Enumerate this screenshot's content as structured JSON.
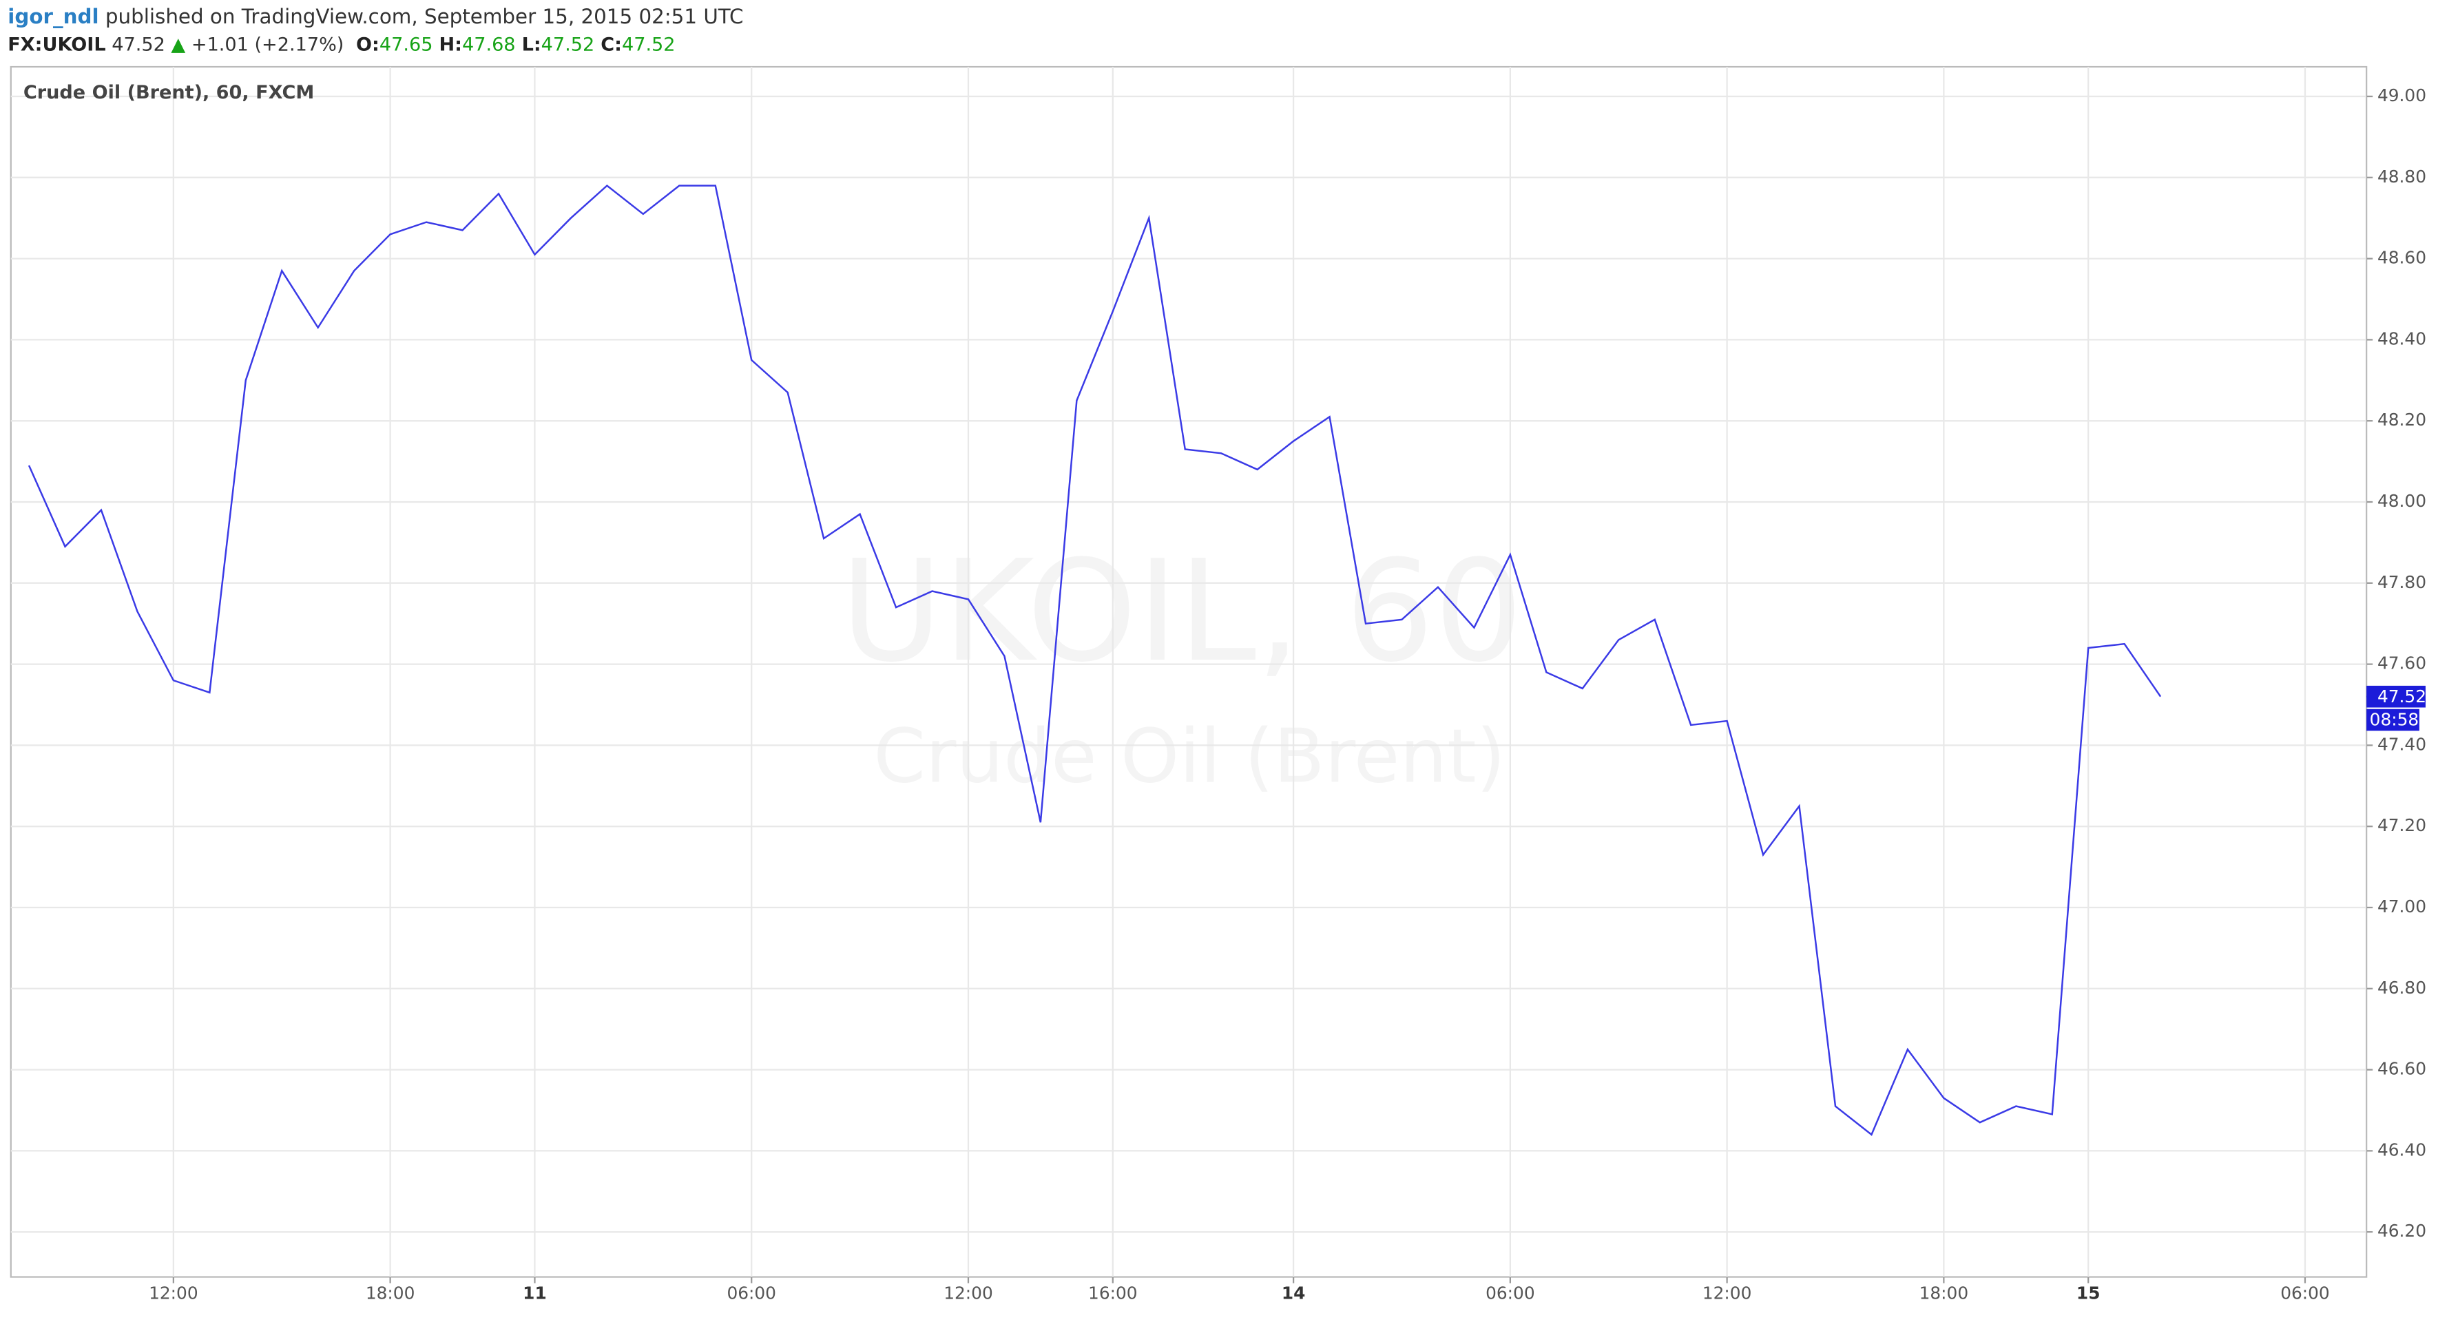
{
  "header": {
    "author": "igor_ndl",
    "published": "published on TradingView.com, September 15, 2015 02:51 UTC",
    "symbol": "FX:UKOIL",
    "price": "47.52",
    "arrow": "▲",
    "change": "+1.01 (+2.17%)",
    "ohlc": [
      {
        "key": "O:",
        "value": "47.65"
      },
      {
        "key": "H:",
        "value": "47.68"
      },
      {
        "key": "L:",
        "value": "47.52"
      },
      {
        "key": "C:",
        "value": "47.52"
      }
    ]
  },
  "chart_data": {
    "type": "line",
    "title": "Crude Oil (Brent), 60, FXCM",
    "watermark": [
      "UKOIL, 60",
      "Crude Oil (Brent)"
    ],
    "x": [
      0,
      1,
      2,
      3,
      4,
      5,
      6,
      7,
      8,
      9,
      10,
      11,
      12,
      13,
      14,
      15,
      16,
      17,
      18,
      19,
      20,
      21,
      22,
      23,
      24,
      25,
      26,
      27,
      28,
      29,
      30,
      31,
      32,
      33,
      34,
      35,
      36,
      37,
      38,
      39,
      40,
      41,
      42,
      43,
      44,
      45,
      46,
      47,
      48,
      49,
      50,
      51,
      52,
      53,
      54,
      55,
      56,
      57,
      58,
      59
    ],
    "series": [
      {
        "name": "UKOIL",
        "color": "#3a3ae6",
        "values": [
          48.09,
          47.89,
          47.98,
          47.73,
          47.56,
          47.53,
          48.3,
          48.57,
          48.43,
          48.57,
          48.66,
          48.69,
          48.67,
          48.76,
          48.61,
          48.7,
          48.78,
          48.71,
          48.78,
          48.78,
          48.35,
          48.27,
          47.91,
          47.97,
          47.74,
          47.78,
          47.76,
          47.62,
          47.21,
          48.25,
          48.47,
          48.7,
          48.13,
          48.12,
          48.08,
          48.15,
          48.21,
          47.7,
          47.71,
          47.79,
          47.69,
          47.87,
          47.58,
          47.54,
          47.66,
          47.71,
          47.45,
          47.46,
          47.13,
          47.25,
          46.51,
          46.44,
          46.65,
          46.53,
          46.47,
          46.51,
          46.49,
          47.64,
          47.65,
          47.52
        ]
      }
    ],
    "xlim": [
      -0.5,
      64.7
    ],
    "xticks": [
      {
        "value": 4,
        "label": "12:00"
      },
      {
        "value": 10,
        "label": "18:00"
      },
      {
        "value": 14,
        "label": "11"
      },
      {
        "value": 20,
        "label": "06:00"
      },
      {
        "value": 26,
        "label": "12:00"
      },
      {
        "value": 30,
        "label": "16:00"
      },
      {
        "value": 35,
        "label": "14"
      },
      {
        "value": 41,
        "label": "06:00"
      },
      {
        "value": 47,
        "label": "12:00"
      },
      {
        "value": 53,
        "label": "18:00"
      },
      {
        "value": 57,
        "label": "15"
      },
      {
        "value": 63,
        "label": "06:00"
      }
    ],
    "ylim": [
      46.089,
      49.073
    ],
    "yticks": [
      {
        "value": 46.2,
        "label": "46.20"
      },
      {
        "value": 46.4,
        "label": "46.40"
      },
      {
        "value": 46.6,
        "label": "46.60"
      },
      {
        "value": 46.8,
        "label": "46.80"
      },
      {
        "value": 47.0,
        "label": "47.00"
      },
      {
        "value": 47.2,
        "label": "47.20"
      },
      {
        "value": 47.4,
        "label": "47.40"
      },
      {
        "value": 47.6,
        "label": "47.60"
      },
      {
        "value": 47.8,
        "label": "47.80"
      },
      {
        "value": 48.0,
        "label": "48.00"
      },
      {
        "value": 48.2,
        "label": "48.20"
      },
      {
        "value": 48.4,
        "label": "48.40"
      },
      {
        "value": 48.6,
        "label": "48.60"
      },
      {
        "value": 48.8,
        "label": "48.80"
      },
      {
        "value": 49.0,
        "label": "49.00"
      }
    ],
    "last_price": {
      "value": 47.52,
      "label": "47.52",
      "countdown": "08:58",
      "color": "#1c1cd9"
    },
    "grid": true
  }
}
